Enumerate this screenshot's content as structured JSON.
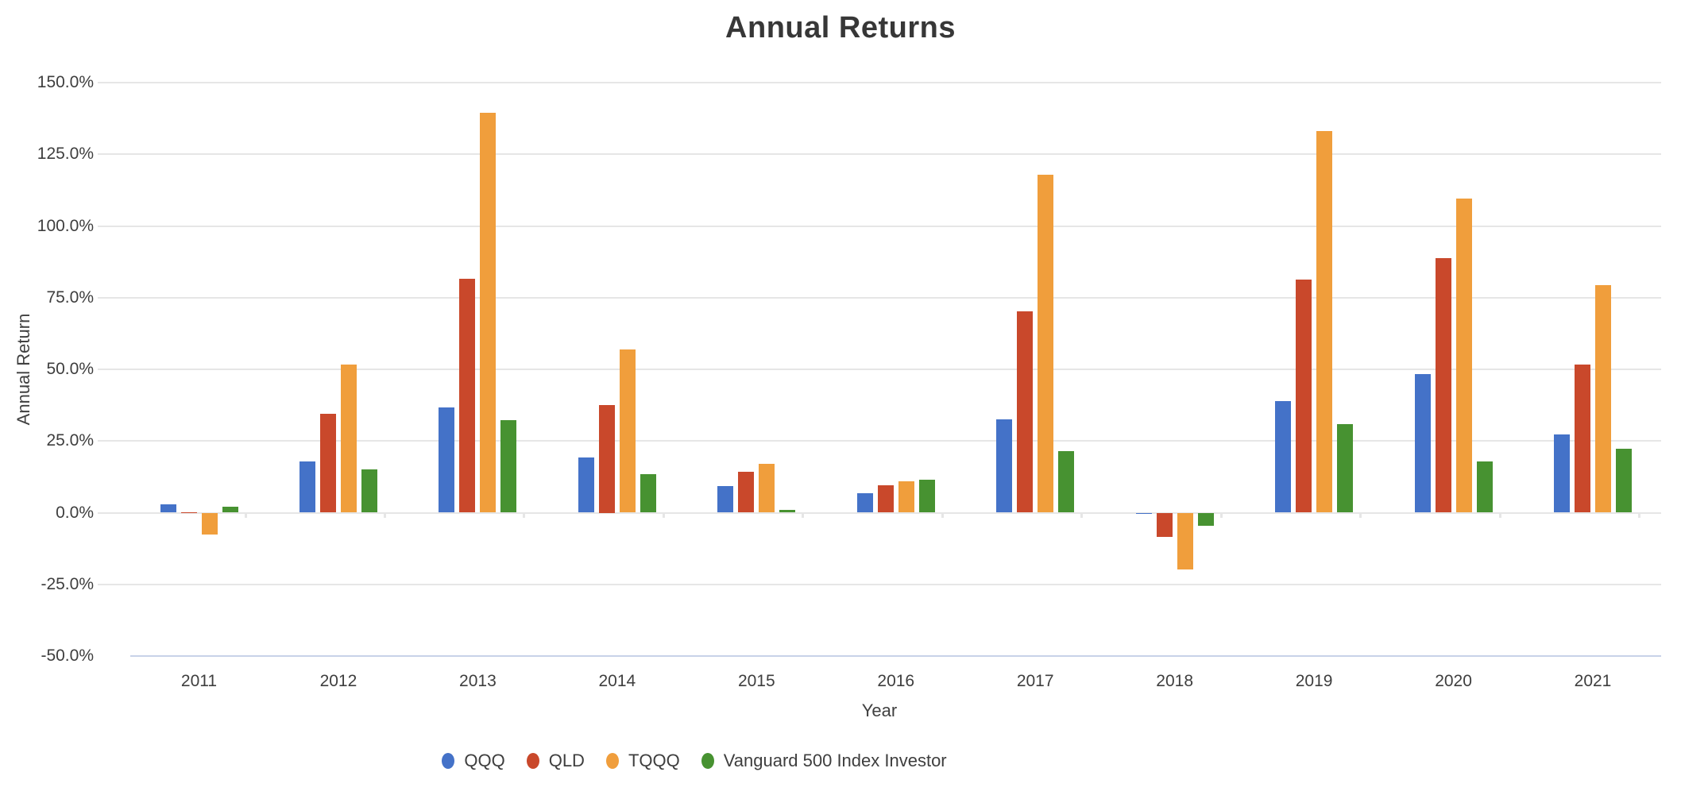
{
  "title": "Annual Returns",
  "y_axis": {
    "title": "Annual Return",
    "tick_labels": [
      "150.0%",
      "125.0%",
      "100.0%",
      "75.0%",
      "50.0%",
      "25.0%",
      "0.0%",
      "-25.0%",
      "-50.0%"
    ],
    "tick_values": [
      150,
      125,
      100,
      75,
      50,
      25,
      0,
      -25,
      -50
    ]
  },
  "x_axis": {
    "title": "Year",
    "categories": [
      "2011",
      "2012",
      "2013",
      "2014",
      "2015",
      "2016",
      "2017",
      "2018",
      "2019",
      "2020",
      "2021"
    ]
  },
  "colors": {
    "grid": "#e6e6e6",
    "bottom_axis": "#c8d2e8",
    "qqq_blue": "#4472C8",
    "qld_red": "#C9482B",
    "tqqq_orange": "#F09E3C",
    "vanguard_green": "#479231"
  },
  "chart_data": {
    "type": "bar",
    "title": "Annual Returns",
    "xlabel": "Year",
    "ylabel": "Annual Return",
    "ylim": [
      -50,
      150
    ],
    "y_tick_step": 25,
    "grid": "horizontal",
    "legend_position": "bottom",
    "value_unit": "%",
    "categories": [
      "2011",
      "2012",
      "2013",
      "2014",
      "2015",
      "2016",
      "2017",
      "2018",
      "2019",
      "2020",
      "2021"
    ],
    "series": [
      {
        "name": "QQQ",
        "color": "#4472C8",
        "values": [
          3.0,
          18.0,
          36.6,
          19.2,
          9.3,
          6.9,
          32.6,
          -0.1,
          39.0,
          48.4,
          27.4
        ]
      },
      {
        "name": "QLD",
        "color": "#C9482B",
        "values": [
          0.2,
          34.4,
          81.6,
          37.5,
          14.4,
          9.6,
          70.2,
          -8.4,
          81.3,
          88.8,
          51.8
        ]
      },
      {
        "name": "TQQQ",
        "color": "#F09E3C",
        "values": [
          -7.7,
          51.7,
          139.6,
          56.8,
          16.9,
          11.0,
          117.9,
          -19.9,
          133.2,
          109.6,
          79.5
        ]
      },
      {
        "name": "Vanguard 500 Index Investor",
        "color": "#479231",
        "values": [
          2.0,
          15.0,
          32.2,
          13.4,
          1.1,
          11.5,
          21.6,
          -4.6,
          31.0,
          18.0,
          22.4
        ]
      }
    ]
  }
}
